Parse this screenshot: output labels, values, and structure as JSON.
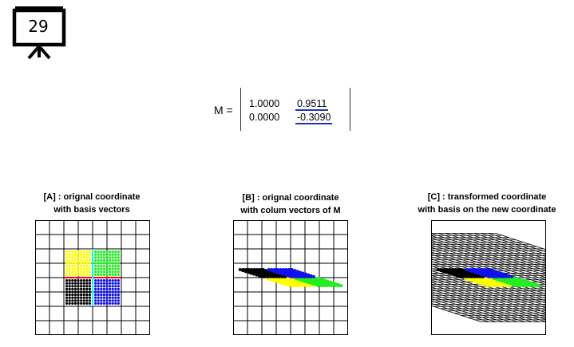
{
  "slide": {
    "number": "29"
  },
  "matrix": {
    "label": "M =",
    "rows": [
      [
        "1.0000",
        "0.9511"
      ],
      [
        "0.0000",
        "-0.3090"
      ]
    ]
  },
  "panels": [
    {
      "title_line1": "[A] : orignal coordinate",
      "title_line2": "with basis vectors"
    },
    {
      "title_line1": "[B] : orignal coordinate",
      "title_line2": "with colum vectors of M"
    },
    {
      "title_line1": "[C] : transformed coordinate",
      "title_line2": "with basis on the new coordinate"
    }
  ],
  "colors": {
    "quadrant_top_left": "#ffff00",
    "quadrant_top_right": "#22ee22",
    "quadrant_bottom_left": "#000000",
    "quadrant_bottom_right": "#1111ee",
    "basis_x_vector": "#ff0000",
    "basis_y_vector": "#00ffff",
    "highlight_underline": "#2233bb"
  }
}
